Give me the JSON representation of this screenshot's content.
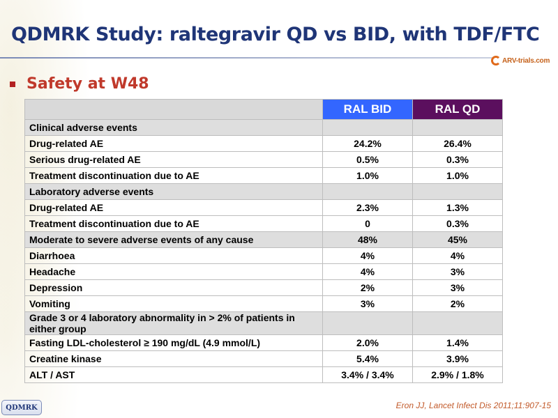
{
  "slide": {
    "title": "QDMRK Study: raltegravir QD vs BID, with TDF/FTC",
    "bullet": "Safety at W48",
    "logo_text": "ARV-trials.com",
    "footer_badge": "QDMRK",
    "citation": "Eron JJ, Lancet Infect Dis 2011;11:907-15"
  },
  "colors": {
    "title": "#1f3577",
    "bullet": "#c0392b",
    "ral_bid_header": "#3366ff",
    "ral_qd_header": "#5b0f5e",
    "section_row": "#dedede"
  },
  "table": {
    "headers": [
      "",
      "RAL BID",
      "RAL QD"
    ],
    "rows": [
      {
        "section": true,
        "label": "Clinical adverse events"
      },
      {
        "label": "Drug-related AE",
        "bid": "24.2%",
        "qd": "26.4%"
      },
      {
        "label": "Serious drug-related AE",
        "bid": "0.5%",
        "qd": "0.3%"
      },
      {
        "label": "Treatment discontinuation due to AE",
        "bid": "1.0%",
        "qd": "1.0%"
      },
      {
        "section": true,
        "label": "Laboratory adverse events"
      },
      {
        "label": "Drug-related AE",
        "bid": "2.3%",
        "qd": "1.3%"
      },
      {
        "label": "Treatment discontinuation due to AE",
        "bid": "0",
        "qd": "0.3%"
      },
      {
        "section": true,
        "label": "Moderate to severe adverse events of any cause",
        "bid": "48%",
        "qd": "45%"
      },
      {
        "label": "Diarrhoea",
        "bid": "4%",
        "qd": "4%"
      },
      {
        "label": "Headache",
        "bid": "4%",
        "qd": "3%"
      },
      {
        "label": "Depression",
        "bid": "2%",
        "qd": "3%"
      },
      {
        "label": "Vomiting",
        "bid": "3%",
        "qd": "2%"
      },
      {
        "section": true,
        "label": "Grade 3 or 4 laboratory abnormality in > 2% of patients in either group"
      },
      {
        "label": "Fasting LDL-cholesterol ≥ 190 mg/dL (4.9 mmol/L)",
        "bid": "2.0%",
        "qd": "1.4%"
      },
      {
        "label": "Creatine kinase",
        "bid": "5.4%",
        "qd": "3.9%"
      },
      {
        "label": "ALT / AST",
        "bid": "3.4% / 3.4%",
        "qd": "2.9% / 1.8%"
      }
    ]
  }
}
